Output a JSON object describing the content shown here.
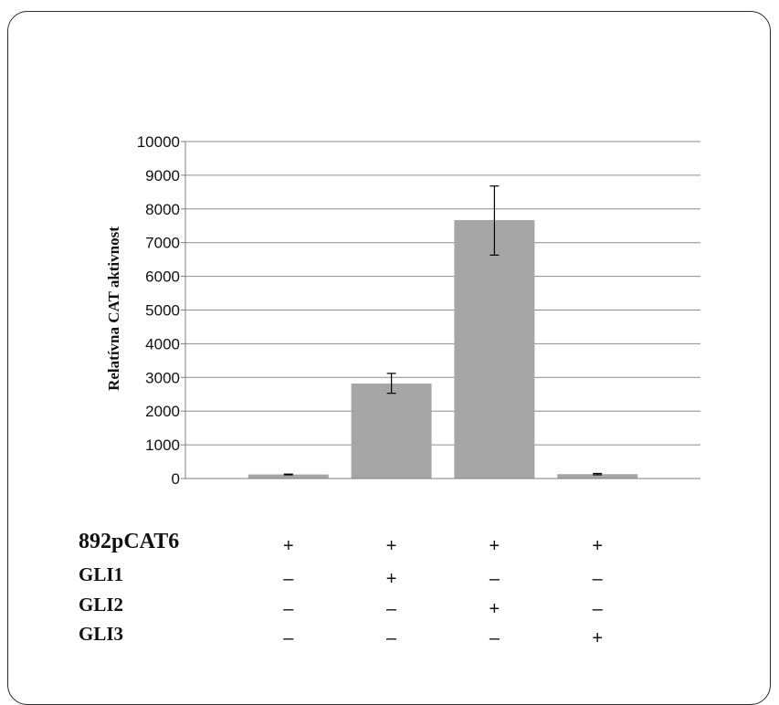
{
  "chart_data": {
    "type": "bar",
    "title": "",
    "ylabel": "Relatívna CAT aktivnost",
    "ylim": [
      0,
      10000
    ],
    "yticks": [
      0,
      1000,
      2000,
      3000,
      4000,
      5000,
      6000,
      7000,
      8000,
      9000,
      10000
    ],
    "grid": true,
    "bar_color": "#a6a6a6",
    "values": [
      120,
      2820,
      7670,
      130
    ],
    "error_low": [
      120,
      2530,
      6630,
      110
    ],
    "error_high": [
      120,
      3120,
      8680,
      150
    ],
    "condition_rows": [
      {
        "label": "892pCAT6",
        "signs": [
          "+",
          "+",
          "+",
          "+"
        ]
      },
      {
        "label": "GLI1",
        "signs": [
          "–",
          "+",
          "–",
          "–"
        ]
      },
      {
        "label": "GLI2",
        "signs": [
          "–",
          "–",
          "+",
          "–"
        ]
      },
      {
        "label": "GLI3",
        "signs": [
          "–",
          "–",
          "–",
          "+"
        ]
      }
    ]
  }
}
